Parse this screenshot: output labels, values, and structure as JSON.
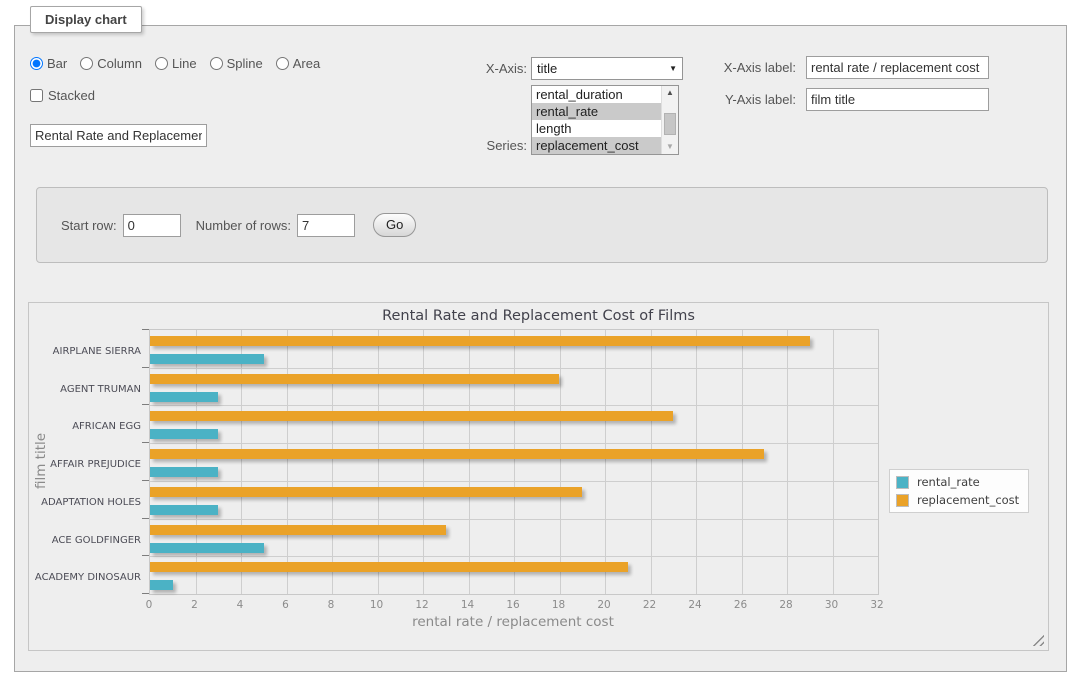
{
  "display_chart": {
    "legend": "Display chart",
    "chart_type": {
      "selected": "Bar",
      "options": [
        {
          "label": "Bar",
          "selected": true
        },
        {
          "label": "Column",
          "selected": false
        },
        {
          "label": "Line",
          "selected": false
        },
        {
          "label": "Spline",
          "selected": false
        },
        {
          "label": "Area",
          "selected": false
        }
      ]
    },
    "stacked": {
      "label": "Stacked",
      "checked": false
    },
    "chart_title_input": {
      "value": "Rental Rate and Replacement Cost of Films"
    },
    "x_axis": {
      "label": "X-Axis:",
      "selected_option": "title"
    },
    "series_select": {
      "label": "Series:",
      "options": [
        {
          "label": "rental_duration",
          "selected": false
        },
        {
          "label": "rental_rate",
          "selected": true
        },
        {
          "label": "length",
          "selected": false
        },
        {
          "label": "replacement_cost",
          "selected": true
        }
      ]
    },
    "x_axis_label_field": {
      "label": "X-Axis label:",
      "value": "rental rate / replacement cost"
    },
    "y_axis_label_field": {
      "label": "Y-Axis label:",
      "value": "film title"
    },
    "row_controls": {
      "start_row_label": "Start row:",
      "start_row_value": "0",
      "number_of_rows_label": "Number of rows:",
      "number_of_rows_value": "7",
      "go_button_label": "Go"
    }
  },
  "chart_data": {
    "type": "bar",
    "orientation": "horizontal",
    "title": "Rental Rate and Replacement Cost of Films",
    "categories": [
      "AIRPLANE SIERRA",
      "AGENT TRUMAN",
      "AFRICAN EGG",
      "AFFAIR PREJUDICE",
      "ADAPTATION HOLES",
      "ACE GOLDFINGER",
      "ACADEMY DINOSAUR"
    ],
    "series": [
      {
        "name": "rental_rate",
        "color": "#4bb2c5",
        "values": [
          4.99,
          2.99,
          2.99,
          2.99,
          2.99,
          4.99,
          0.99
        ]
      },
      {
        "name": "replacement_cost",
        "color": "#eaa228",
        "values": [
          28.99,
          17.99,
          22.99,
          26.99,
          18.99,
          12.99,
          20.99
        ]
      }
    ],
    "xlabel": "rental rate / replacement cost",
    "ylabel": "film title",
    "xlim": [
      0,
      32
    ],
    "xticks": [
      0,
      2,
      4,
      6,
      8,
      10,
      12,
      14,
      16,
      18,
      20,
      22,
      24,
      26,
      28,
      30,
      32
    ],
    "grid": true,
    "legend_position": "right"
  }
}
